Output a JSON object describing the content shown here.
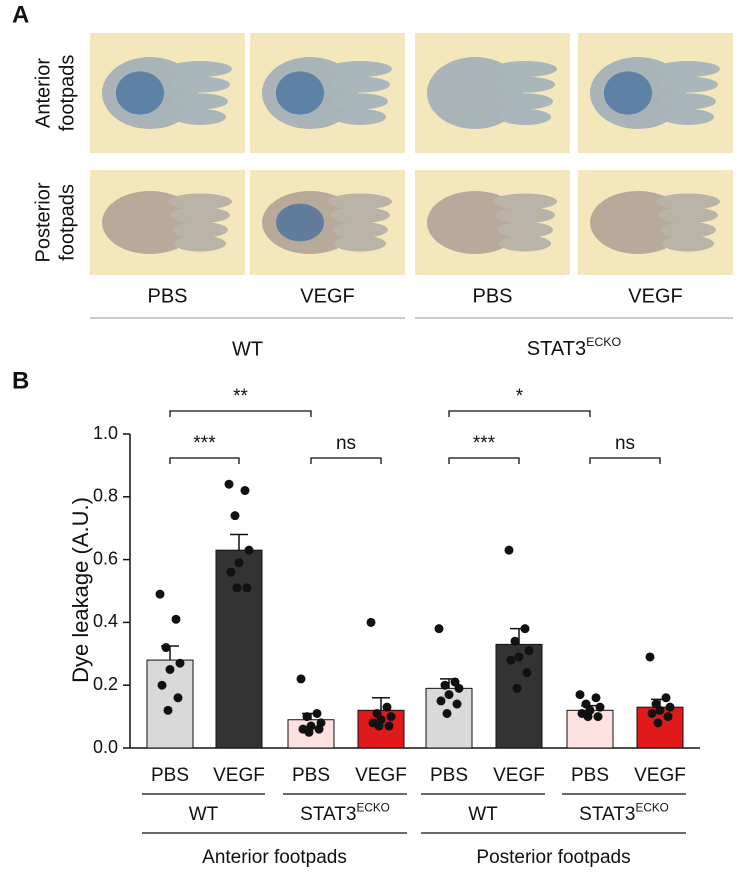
{
  "panel_a": {
    "label": "A",
    "row_labels": [
      [
        "Anterior",
        "footpads"
      ],
      [
        "Posterior",
        "footpads"
      ]
    ],
    "column_labels": [
      "PBS",
      "VEGF",
      "PBS",
      "VEGF"
    ],
    "group_labels": [
      "WT",
      {
        "base": "STAT3",
        "sup": "ECKO"
      }
    ]
  },
  "chart_data": {
    "type": "bar",
    "panel_label": "B",
    "y_label": "Dye leakage (A.U.)",
    "categories": [
      "PBS",
      "VEGF",
      "PBS",
      "VEGF",
      "PBS",
      "VEGF",
      "PBS",
      "VEGF"
    ],
    "values": [
      0.28,
      0.63,
      0.09,
      0.12,
      0.19,
      0.33,
      0.12,
      0.13
    ],
    "errors": [
      0.045,
      0.05,
      0.02,
      0.04,
      0.03,
      0.05,
      0.015,
      0.025
    ],
    "colors": [
      "#d9d9d9",
      "#333333",
      "#fde0e0",
      "#e0191b",
      "#d9d9d9",
      "#333333",
      "#fde0e0",
      "#e0191b"
    ],
    "points": [
      [
        0.49,
        0.41,
        0.32,
        0.27,
        0.25,
        0.2,
        0.16,
        0.12
      ],
      [
        0.84,
        0.82,
        0.74,
        0.63,
        0.59,
        0.56,
        0.51,
        0.51
      ],
      [
        0.22,
        0.11,
        0.1,
        0.08,
        0.07,
        0.06,
        0.06,
        0.05
      ],
      [
        0.4,
        0.13,
        0.11,
        0.1,
        0.09,
        0.08,
        0.07,
        0.07
      ],
      [
        0.38,
        0.21,
        0.2,
        0.19,
        0.17,
        0.15,
        0.14,
        0.11
      ],
      [
        0.63,
        0.38,
        0.34,
        0.31,
        0.29,
        0.28,
        0.24,
        0.19
      ],
      [
        0.17,
        0.16,
        0.14,
        0.13,
        0.12,
        0.11,
        0.1,
        0.1
      ],
      [
        0.29,
        0.16,
        0.14,
        0.13,
        0.12,
        0.11,
        0.1,
        0.08
      ]
    ],
    "subgroups": [
      "WT",
      {
        "base": "STAT3",
        "sup": "ECKO"
      },
      "WT",
      {
        "base": "STAT3",
        "sup": "ECKO"
      }
    ],
    "groups": [
      "Anterior footpads",
      "Posterior footpads"
    ],
    "significance": [
      "**",
      "***",
      "ns",
      "*",
      "***",
      "ns"
    ],
    "ylim": [
      0,
      1
    ],
    "yticks": [
      {
        "value": 0,
        "label": "0.0"
      },
      0.2,
      0.4,
      0.6,
      0.8,
      {
        "value": 1,
        "label": "1.0"
      }
    ]
  }
}
